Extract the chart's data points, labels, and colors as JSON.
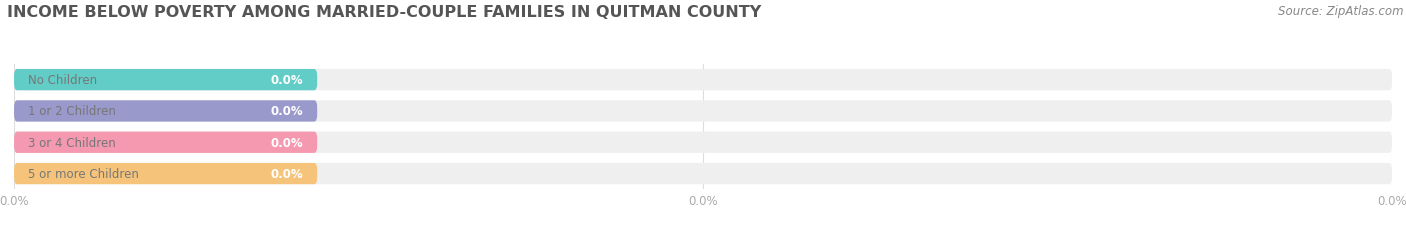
{
  "title": "INCOME BELOW POVERTY AMONG MARRIED-COUPLE FAMILIES IN QUITMAN COUNTY",
  "source": "Source: ZipAtlas.com",
  "categories": [
    "No Children",
    "1 or 2 Children",
    "3 or 4 Children",
    "5 or more Children"
  ],
  "values": [
    0.0,
    0.0,
    0.0,
    0.0
  ],
  "bar_colors": [
    "#62ccc7",
    "#9999cc",
    "#f499b0",
    "#f5c47a"
  ],
  "bar_bg_color": "#efefef",
  "value_labels": [
    "0.0%",
    "0.0%",
    "0.0%",
    "0.0%"
  ],
  "xlim_max": 100,
  "background_color": "#ffffff",
  "title_fontsize": 11.5,
  "label_fontsize": 8.5,
  "tick_fontsize": 8.5,
  "source_fontsize": 8.5,
  "colored_stub_pct": 22,
  "bar_height": 0.68,
  "n_xticks": 3,
  "xtick_positions": [
    0,
    50,
    100
  ],
  "xtick_labels": [
    "0.0%",
    "0.0%",
    "0.0%"
  ]
}
